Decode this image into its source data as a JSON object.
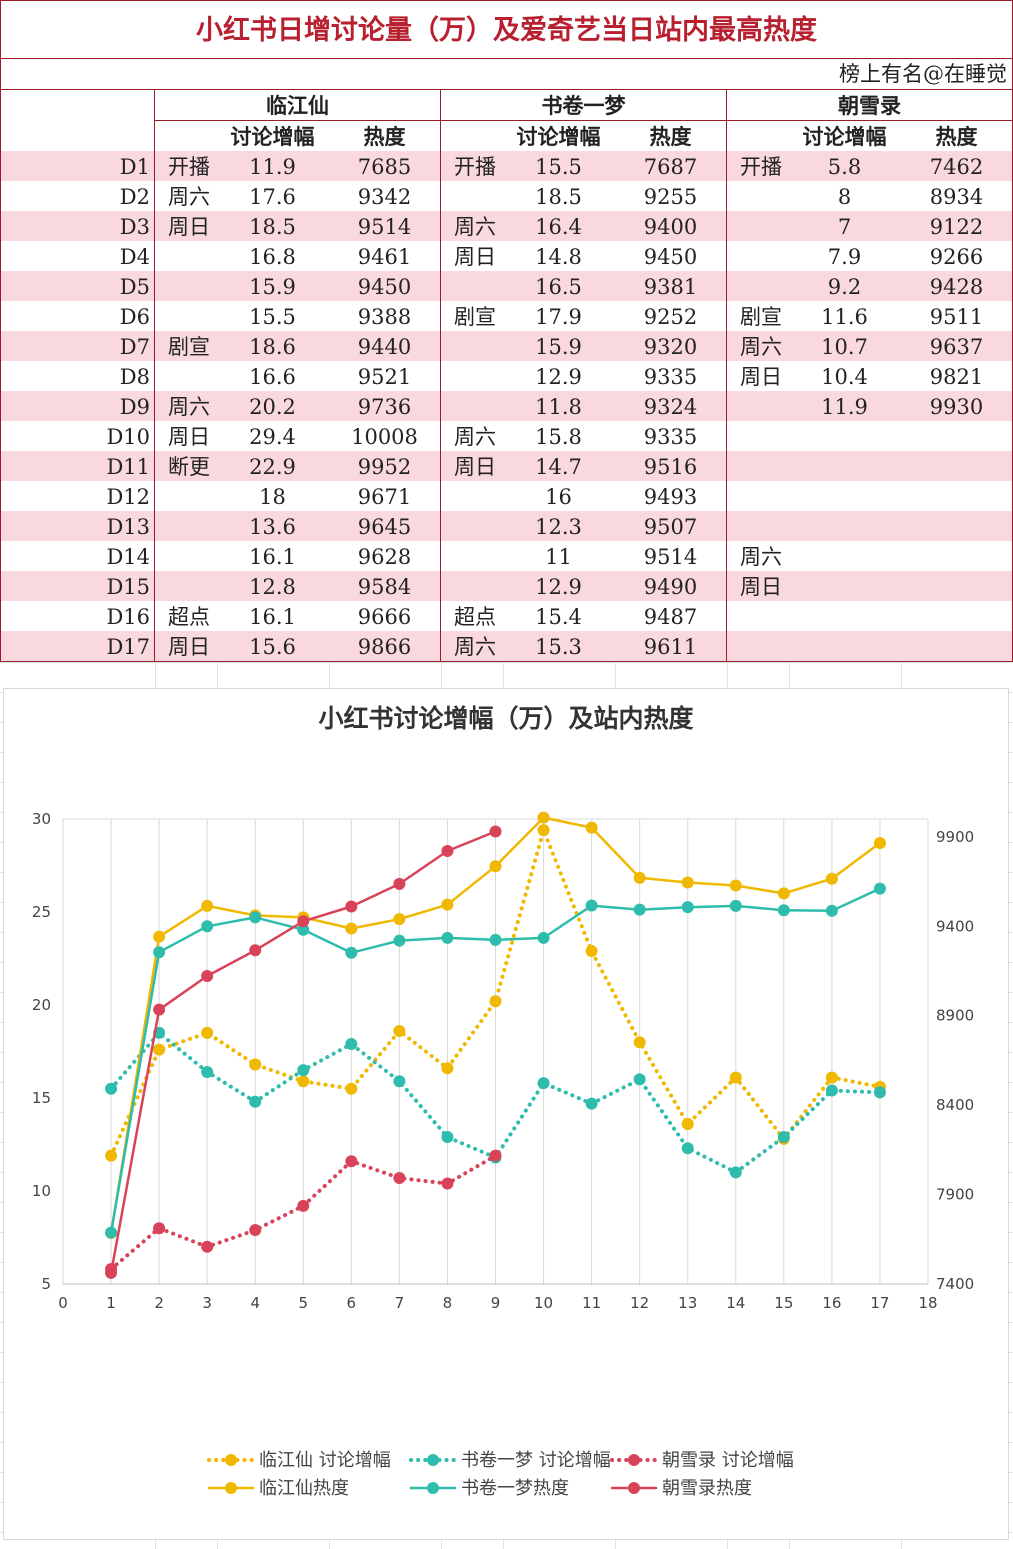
{
  "table": {
    "title": "小红书日增讨论量（万）及爱奇艺当日站内最高热度",
    "credit": "榜上有名@在睡觉",
    "groups": [
      "临江仙",
      "书卷一梦",
      "朝雪录"
    ],
    "col_headers": [
      "讨论增幅",
      "热度"
    ],
    "rows": [
      {
        "day": "D1",
        "a_note": "开播",
        "a_disc": "11.9",
        "a_heat": "7685",
        "b_note": "开播",
        "b_disc": "15.5",
        "b_heat": "7687",
        "c_note": "开播",
        "c_disc": "5.8",
        "c_heat": "7462"
      },
      {
        "day": "D2",
        "a_note": "周六",
        "a_disc": "17.6",
        "a_heat": "9342",
        "b_note": "",
        "b_disc": "18.5",
        "b_heat": "9255",
        "c_note": "",
        "c_disc": "8",
        "c_heat": "8934"
      },
      {
        "day": "D3",
        "a_note": "周日",
        "a_disc": "18.5",
        "a_heat": "9514",
        "b_note": "周六",
        "b_disc": "16.4",
        "b_heat": "9400",
        "c_note": "",
        "c_disc": "7",
        "c_heat": "9122"
      },
      {
        "day": "D4",
        "a_note": "",
        "a_disc": "16.8",
        "a_heat": "9461",
        "b_note": "周日",
        "b_disc": "14.8",
        "b_heat": "9450",
        "c_note": "",
        "c_disc": "7.9",
        "c_heat": "9266"
      },
      {
        "day": "D5",
        "a_note": "",
        "a_disc": "15.9",
        "a_heat": "9450",
        "b_note": "",
        "b_disc": "16.5",
        "b_heat": "9381",
        "c_note": "",
        "c_disc": "9.2",
        "c_heat": "9428"
      },
      {
        "day": "D6",
        "a_note": "",
        "a_disc": "15.5",
        "a_heat": "9388",
        "b_note": "剧宣",
        "b_disc": "17.9",
        "b_heat": "9252",
        "c_note": "剧宣",
        "c_disc": "11.6",
        "c_heat": "9511"
      },
      {
        "day": "D7",
        "a_note": "剧宣",
        "a_disc": "18.6",
        "a_heat": "9440",
        "b_note": "",
        "b_disc": "15.9",
        "b_heat": "9320",
        "c_note": "周六",
        "c_disc": "10.7",
        "c_heat": "9637"
      },
      {
        "day": "D8",
        "a_note": "",
        "a_disc": "16.6",
        "a_heat": "9521",
        "b_note": "",
        "b_disc": "12.9",
        "b_heat": "9335",
        "c_note": "周日",
        "c_disc": "10.4",
        "c_heat": "9821"
      },
      {
        "day": "D9",
        "a_note": "周六",
        "a_disc": "20.2",
        "a_heat": "9736",
        "b_note": "",
        "b_disc": "11.8",
        "b_heat": "9324",
        "c_note": "",
        "c_disc": "11.9",
        "c_heat": "9930"
      },
      {
        "day": "D10",
        "a_note": "周日",
        "a_disc": "29.4",
        "a_heat": "10008",
        "b_note": "周六",
        "b_disc": "15.8",
        "b_heat": "9335",
        "c_note": "",
        "c_disc": "",
        "c_heat": ""
      },
      {
        "day": "D11",
        "a_note": "断更",
        "a_disc": "22.9",
        "a_heat": "9952",
        "b_note": "周日",
        "b_disc": "14.7",
        "b_heat": "9516",
        "c_note": "",
        "c_disc": "",
        "c_heat": ""
      },
      {
        "day": "D12",
        "a_note": "",
        "a_disc": "18",
        "a_heat": "9671",
        "b_note": "",
        "b_disc": "16",
        "b_heat": "9493",
        "c_note": "",
        "c_disc": "",
        "c_heat": ""
      },
      {
        "day": "D13",
        "a_note": "",
        "a_disc": "13.6",
        "a_heat": "9645",
        "b_note": "",
        "b_disc": "12.3",
        "b_heat": "9507",
        "c_note": "",
        "c_disc": "",
        "c_heat": ""
      },
      {
        "day": "D14",
        "a_note": "",
        "a_disc": "16.1",
        "a_heat": "9628",
        "b_note": "",
        "b_disc": "11",
        "b_heat": "9514",
        "c_note": "周六",
        "c_disc": "",
        "c_heat": ""
      },
      {
        "day": "D15",
        "a_note": "",
        "a_disc": "12.8",
        "a_heat": "9584",
        "b_note": "",
        "b_disc": "12.9",
        "b_heat": "9490",
        "c_note": "周日",
        "c_disc": "",
        "c_heat": ""
      },
      {
        "day": "D16",
        "a_note": "超点",
        "a_disc": "16.1",
        "a_heat": "9666",
        "b_note": "超点",
        "b_disc": "15.4",
        "b_heat": "9487",
        "c_note": "",
        "c_disc": "",
        "c_heat": ""
      },
      {
        "day": "D17",
        "a_note": "周日",
        "a_disc": "15.6",
        "a_heat": "9866",
        "b_note": "周六",
        "b_disc": "15.3",
        "b_heat": "9611",
        "c_note": "",
        "c_disc": "",
        "c_heat": ""
      }
    ]
  },
  "colors": {
    "title": "#b8202f",
    "row_pink": "#f9d9df",
    "border": "#9e1b27",
    "gold": "#f0b800",
    "teal": "#2ebcad",
    "red": "#d9435a"
  },
  "chart_data": {
    "type": "line",
    "title": "小红书讨论增幅（万）及站内热度",
    "x_ticks": [
      0,
      1,
      2,
      3,
      4,
      5,
      6,
      7,
      8,
      9,
      10,
      11,
      12,
      13,
      14,
      15,
      16,
      17,
      18
    ],
    "xlim": [
      0,
      18
    ],
    "y_left_ticks": [
      5,
      10,
      15,
      20,
      25,
      30
    ],
    "y_left_lim": [
      5,
      30
    ],
    "y_right_ticks": [
      7400,
      7900,
      8400,
      8900,
      9400,
      9900
    ],
    "y_right_lim": [
      7400,
      10000
    ],
    "grid": "vertical gridlines",
    "legend_position": "bottom",
    "series": [
      {
        "name": "临江仙 讨论增幅",
        "axis": "left",
        "style": "dotted",
        "color": "#f0b800",
        "x": [
          1,
          2,
          3,
          4,
          5,
          6,
          7,
          8,
          9,
          10,
          11,
          12,
          13,
          14,
          15,
          16,
          17
        ],
        "values": [
          11.9,
          17.6,
          18.5,
          16.8,
          15.9,
          15.5,
          18.6,
          16.6,
          20.2,
          29.4,
          22.9,
          18,
          13.6,
          16.1,
          12.8,
          16.1,
          15.6
        ]
      },
      {
        "name": "书卷一梦 讨论增幅",
        "axis": "left",
        "style": "dotted",
        "color": "#2ebcad",
        "x": [
          1,
          2,
          3,
          4,
          5,
          6,
          7,
          8,
          9,
          10,
          11,
          12,
          13,
          14,
          15,
          16,
          17
        ],
        "values": [
          15.5,
          18.5,
          16.4,
          14.8,
          16.5,
          17.9,
          15.9,
          12.9,
          11.8,
          15.8,
          14.7,
          16,
          12.3,
          11,
          12.9,
          15.4,
          15.3
        ]
      },
      {
        "name": "朝雪录 讨论增幅",
        "axis": "left",
        "style": "dotted",
        "color": "#d9435a",
        "x": [
          1,
          2,
          3,
          4,
          5,
          6,
          7,
          8,
          9
        ],
        "values": [
          5.8,
          8,
          7,
          7.9,
          9.2,
          11.6,
          10.7,
          10.4,
          11.9
        ]
      },
      {
        "name": "临江仙热度",
        "axis": "right",
        "style": "solid",
        "color": "#f0b800",
        "x": [
          1,
          2,
          3,
          4,
          5,
          6,
          7,
          8,
          9,
          10,
          11,
          12,
          13,
          14,
          15,
          16,
          17
        ],
        "values": [
          7685,
          9342,
          9514,
          9461,
          9450,
          9388,
          9440,
          9521,
          9736,
          10008,
          9952,
          9671,
          9645,
          9628,
          9584,
          9666,
          9866
        ]
      },
      {
        "name": "书卷一梦热度",
        "axis": "right",
        "style": "solid",
        "color": "#2ebcad",
        "x": [
          1,
          2,
          3,
          4,
          5,
          6,
          7,
          8,
          9,
          10,
          11,
          12,
          13,
          14,
          15,
          16,
          17
        ],
        "values": [
          7687,
          9255,
          9400,
          9450,
          9381,
          9252,
          9320,
          9335,
          9324,
          9335,
          9516,
          9493,
          9507,
          9514,
          9490,
          9487,
          9611
        ]
      },
      {
        "name": "朝雪录热度",
        "axis": "right",
        "style": "solid",
        "color": "#d9435a",
        "x": [
          1,
          2,
          3,
          4,
          5,
          6,
          7,
          8,
          9
        ],
        "values": [
          7462,
          8934,
          9122,
          9266,
          9428,
          9511,
          9637,
          9821,
          9930
        ]
      }
    ]
  }
}
